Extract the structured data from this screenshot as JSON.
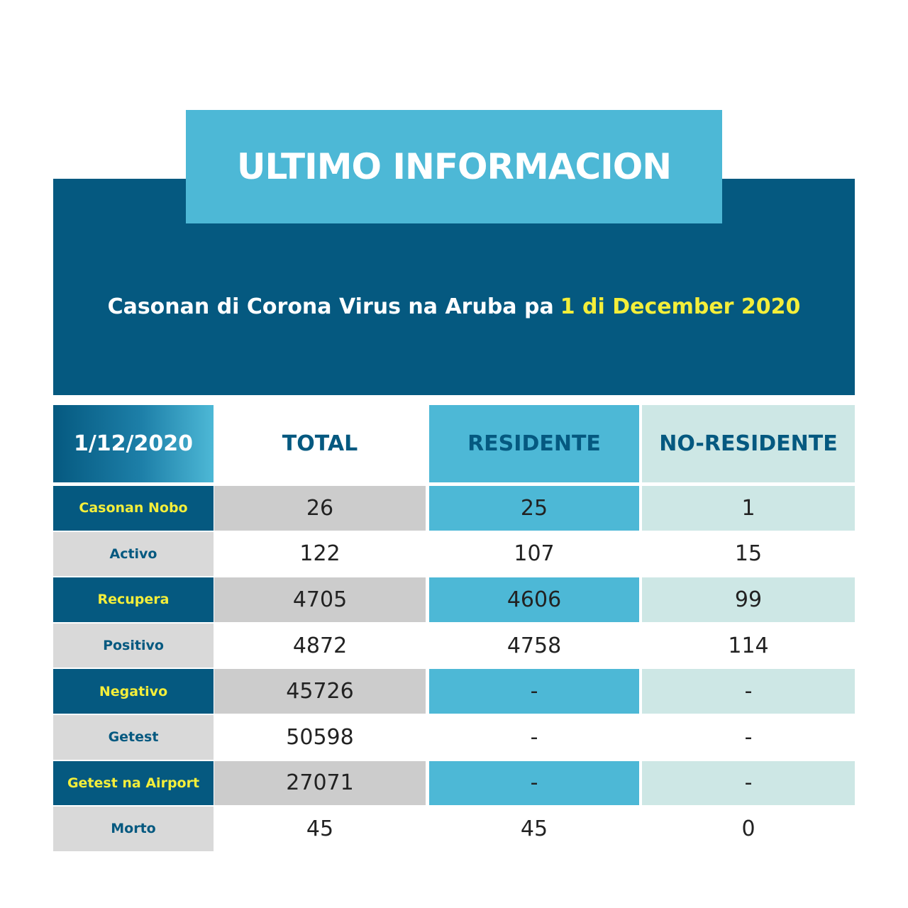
{
  "header": {
    "title": "ULTIMO INFORMACION",
    "subtitle": "Casonan di Corona Virus na Aruba pa",
    "date": "1 di December 2020"
  },
  "table": {
    "columns": [
      "1/12/2020",
      "TOTAL",
      "RESIDENTE",
      "NO-RESIDENTE"
    ],
    "rows": [
      [
        "Casonan Nobo",
        "26",
        "25",
        "1"
      ],
      [
        "Activo",
        "122",
        "107",
        "15"
      ],
      [
        "Recupera",
        "4705",
        "4606",
        "99"
      ],
      [
        "Positivo",
        "4872",
        "4758",
        "114"
      ],
      [
        "Negativo",
        "45726",
        "-",
        "-"
      ],
      [
        "Getest",
        "50598",
        "-",
        "-"
      ],
      [
        "Getest na Airport",
        "27071",
        "-",
        "-"
      ],
      [
        "Morto",
        "45",
        "45",
        "0"
      ]
    ]
  }
}
